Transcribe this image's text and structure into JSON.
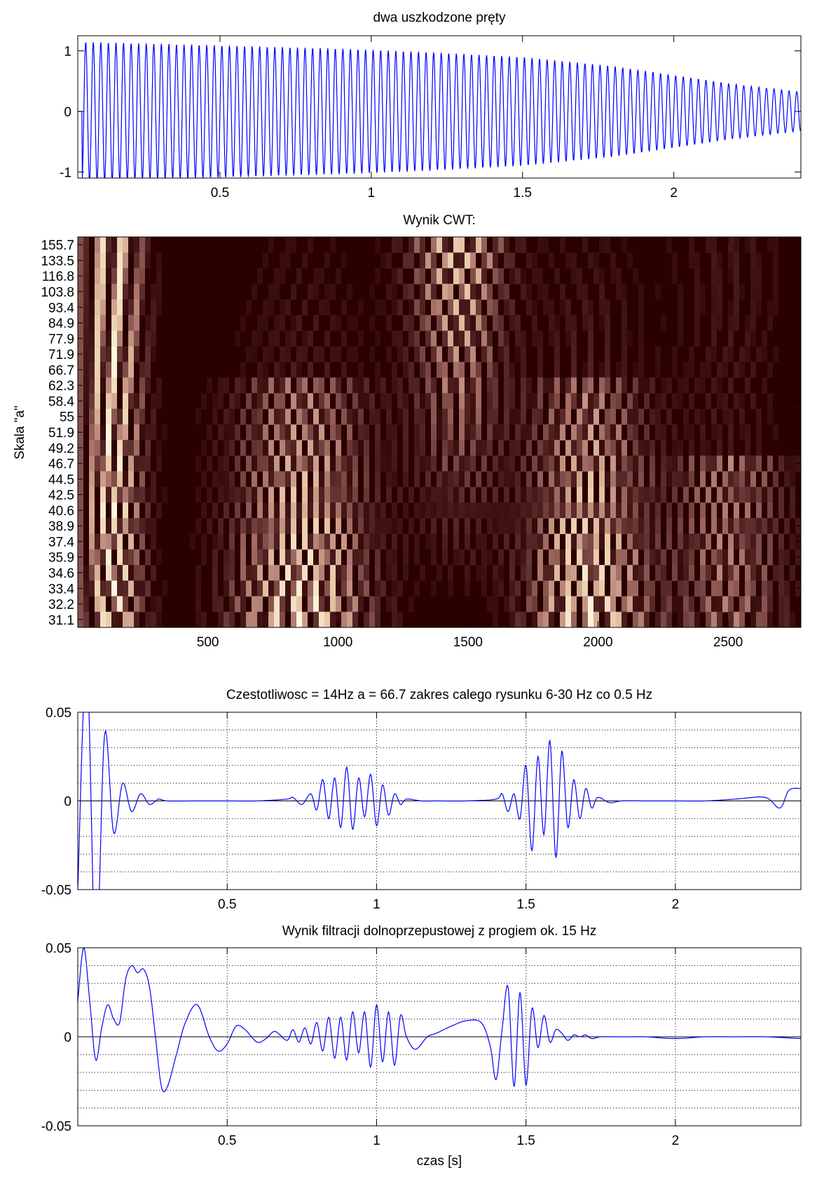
{
  "chart_data": [
    {
      "type": "line",
      "title": "dwa uszkodzone pręty",
      "xlabel": "",
      "ylabel": "",
      "xlim": [
        0.03,
        2.42
      ],
      "ylim": [
        -1.1,
        1.25
      ],
      "xticks": [
        "0.5",
        "1",
        "1.5",
        "2"
      ],
      "yticks": [
        "-1",
        "0",
        "1"
      ],
      "grid": false,
      "series": [
        {
          "color": "#0000ff",
          "description_points": {
            "x": [
              0.05,
              0.3,
              0.6,
              0.9,
              1.2,
              1.5,
              1.8,
              2.0,
              2.2,
              2.42
            ],
            "amplitude": [
              1.15,
              1.12,
              1.08,
              1.04,
              0.98,
              0.9,
              0.75,
              0.6,
              0.45,
              0.32
            ]
          },
          "oscillation_hz": 40
        }
      ]
    },
    {
      "type": "heatmap",
      "title": "Wynik CWT:",
      "xlabel": "",
      "ylabel": "Skala \"a\"",
      "xlim": [
        0,
        2780
      ],
      "xticks": [
        "500",
        "1000",
        "1500",
        "2000",
        "2500"
      ],
      "yticks": [
        "155.7",
        "133.5",
        "116.8",
        "103.8",
        "93.4",
        "84.9",
        "77.9",
        "71.9",
        "66.7",
        "62.3",
        "58.4",
        "55",
        "51.9",
        "49.2",
        "46.7",
        "44.5",
        "42.5",
        "40.6",
        "38.9",
        "37.4",
        "35.9",
        "34.6",
        "33.4",
        "32.2",
        "31.1"
      ],
      "colormap": "pink",
      "colormap_stops": [
        "#2a0000",
        "#5a2a2a",
        "#b07a70",
        "#e8c8a8",
        "#fff8e0"
      ],
      "grid": false
    },
    {
      "type": "line",
      "title": "Czestotliwosc = 14Hz  a = 66.7 zakres calego rysunku 6-30 Hz co 0.5 Hz",
      "xlabel": "",
      "ylabel": "",
      "xlim": [
        0.0,
        2.42
      ],
      "ylim": [
        -0.05,
        0.05
      ],
      "xticks": [
        "0.5",
        "1",
        "1.5",
        "2"
      ],
      "yticks": [
        "-0.05",
        "0",
        "0.05"
      ],
      "grid": true,
      "series": [
        {
          "color": "#0000ff",
          "x": [
            0.0,
            0.03,
            0.06,
            0.09,
            0.12,
            0.15,
            0.18,
            0.21,
            0.24,
            0.27,
            0.3,
            0.4,
            0.5,
            0.6,
            0.7,
            0.72,
            0.75,
            0.78,
            0.8,
            0.82,
            0.84,
            0.86,
            0.88,
            0.9,
            0.92,
            0.94,
            0.96,
            0.98,
            1.0,
            1.02,
            1.04,
            1.06,
            1.08,
            1.1,
            1.15,
            1.2,
            1.3,
            1.4,
            1.42,
            1.44,
            1.46,
            1.48,
            1.5,
            1.52,
            1.54,
            1.56,
            1.58,
            1.6,
            1.62,
            1.64,
            1.66,
            1.68,
            1.7,
            1.72,
            1.74,
            1.78,
            1.82,
            1.9,
            2.0,
            2.1,
            2.2,
            2.3,
            2.35,
            2.38,
            2.42
          ],
          "y": [
            -0.05,
            0.08,
            -0.09,
            0.038,
            -0.018,
            0.01,
            -0.006,
            0.004,
            -0.002,
            0.001,
            0.0,
            0.0,
            0.0,
            0.0,
            0.001,
            0.002,
            -0.002,
            0.004,
            -0.005,
            0.012,
            -0.01,
            0.013,
            -0.015,
            0.019,
            -0.016,
            0.013,
            -0.009,
            0.015,
            -0.014,
            0.009,
            -0.008,
            0.004,
            -0.002,
            0.001,
            0.0,
            0.0,
            0.0,
            0.001,
            0.004,
            -0.006,
            0.004,
            -0.01,
            0.02,
            -0.028,
            0.025,
            -0.019,
            0.034,
            -0.032,
            0.028,
            -0.015,
            0.012,
            -0.01,
            0.007,
            -0.004,
            0.002,
            -0.001,
            0.0,
            0.0,
            0.0,
            0.0,
            0.001,
            0.002,
            -0.004,
            0.006,
            0.007
          ]
        }
      ]
    },
    {
      "type": "line",
      "title": "Wynik filtracji dolnoprzepustowej z progiem ok. 15 Hz",
      "xlabel": "czas [s]",
      "ylabel": "",
      "xlim": [
        0.0,
        2.42
      ],
      "ylim": [
        -0.05,
        0.05
      ],
      "xticks": [
        "0.5",
        "1",
        "1.5",
        "2"
      ],
      "yticks": [
        "-0.05",
        "0",
        "0.05"
      ],
      "grid": true,
      "series": [
        {
          "color": "#0000ff",
          "x": [
            0.0,
            0.02,
            0.04,
            0.06,
            0.08,
            0.1,
            0.12,
            0.14,
            0.16,
            0.18,
            0.2,
            0.22,
            0.24,
            0.26,
            0.28,
            0.3,
            0.33,
            0.36,
            0.4,
            0.44,
            0.47,
            0.5,
            0.53,
            0.56,
            0.6,
            0.63,
            0.66,
            0.7,
            0.72,
            0.74,
            0.76,
            0.78,
            0.8,
            0.82,
            0.84,
            0.86,
            0.88,
            0.9,
            0.92,
            0.94,
            0.96,
            0.98,
            1.0,
            1.02,
            1.04,
            1.06,
            1.08,
            1.1,
            1.13,
            1.17,
            1.2,
            1.25,
            1.3,
            1.35,
            1.38,
            1.4,
            1.42,
            1.44,
            1.46,
            1.48,
            1.5,
            1.52,
            1.54,
            1.56,
            1.58,
            1.6,
            1.62,
            1.64,
            1.66,
            1.68,
            1.7,
            1.72,
            1.75,
            1.8,
            1.85,
            1.9,
            2.0,
            2.1,
            2.2,
            2.3,
            2.42
          ],
          "y": [
            0.02,
            0.05,
            0.02,
            -0.013,
            0.005,
            0.018,
            0.01,
            0.008,
            0.032,
            0.04,
            0.036,
            0.038,
            0.028,
            0.0,
            -0.028,
            -0.028,
            -0.01,
            0.008,
            0.018,
            0.0,
            -0.008,
            -0.004,
            0.006,
            0.004,
            -0.003,
            -0.001,
            0.003,
            -0.002,
            0.004,
            -0.003,
            0.005,
            -0.004,
            0.008,
            -0.008,
            0.011,
            -0.012,
            0.011,
            -0.013,
            0.014,
            -0.009,
            0.014,
            -0.017,
            0.018,
            -0.014,
            0.014,
            -0.016,
            0.012,
            0.0,
            -0.007,
            0.0,
            0.002,
            0.006,
            0.009,
            0.008,
            -0.005,
            -0.024,
            0.004,
            0.028,
            -0.028,
            0.025,
            -0.027,
            0.016,
            -0.006,
            0.012,
            -0.003,
            0.004,
            0.002,
            -0.002,
            0.001,
            0.0,
            0.001,
            -0.001,
            0.0,
            0.0,
            0.0,
            0.0,
            -0.001,
            0.0,
            0.0,
            0.0,
            -0.001
          ]
        }
      ]
    }
  ]
}
